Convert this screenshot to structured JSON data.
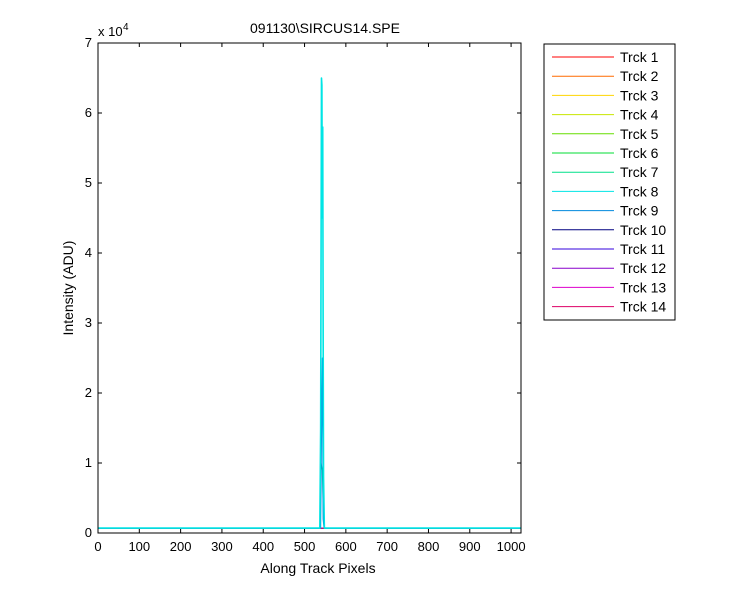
{
  "chart_data": {
    "type": "line",
    "title": "091130\\SIRCUS14.SPE",
    "xlabel": "Along Track Pixels",
    "ylabel": "Intensity (ADU)",
    "xlim": [
      0,
      1024
    ],
    "ylim": [
      0,
      70000
    ],
    "y_exponent_label": "x 10",
    "y_exponent_power": "4",
    "grid": false,
    "legend_placement": "outside-top-right",
    "xticks": [
      {
        "value": 0,
        "label": "0"
      },
      {
        "value": 100,
        "label": "100"
      },
      {
        "value": 200,
        "label": "200"
      },
      {
        "value": 300,
        "label": "300"
      },
      {
        "value": 400,
        "label": "400"
      },
      {
        "value": 500,
        "label": "500"
      },
      {
        "value": 600,
        "label": "600"
      },
      {
        "value": 700,
        "label": "700"
      },
      {
        "value": 800,
        "label": "800"
      },
      {
        "value": 900,
        "label": "900"
      },
      {
        "value": 1000,
        "label": "1000"
      }
    ],
    "yticks": [
      {
        "value": 0,
        "label": "0"
      },
      {
        "value": 10000,
        "label": "1"
      },
      {
        "value": 20000,
        "label": "2"
      },
      {
        "value": 30000,
        "label": "3"
      },
      {
        "value": 40000,
        "label": "4"
      },
      {
        "value": 50000,
        "label": "5"
      },
      {
        "value": 60000,
        "label": "6"
      },
      {
        "value": 70000,
        "label": "7"
      }
    ],
    "series": [
      {
        "name": "Trck 1",
        "color": "#ff0000",
        "x": [
          0,
          1024
        ],
        "y": [
          700,
          700
        ]
      },
      {
        "name": "Trck 2",
        "color": "#ff6a00",
        "x": [
          0,
          1024
        ],
        "y": [
          700,
          700
        ]
      },
      {
        "name": "Trck 3",
        "color": "#ffd400",
        "x": [
          0,
          1024
        ],
        "y": [
          700,
          700
        ]
      },
      {
        "name": "Trck 4",
        "color": "#c8e600",
        "x": [
          0,
          1024
        ],
        "y": [
          700,
          700
        ]
      },
      {
        "name": "Trck 5",
        "color": "#66dd00",
        "x": [
          0,
          1024
        ],
        "y": [
          700,
          700
        ]
      },
      {
        "name": "Trck 6",
        "color": "#00dd33",
        "x": [
          0,
          1024
        ],
        "y": [
          700,
          700
        ]
      },
      {
        "name": "Trck 7",
        "color": "#00e08a",
        "x": [
          0,
          537,
          540,
          543,
          546,
          549,
          1024
        ],
        "y": [
          700,
          700,
          10000,
          9000,
          1500,
          700,
          700
        ]
      },
      {
        "name": "Trck 8",
        "color": "#00e5e5",
        "x": [
          0,
          537,
          539,
          541,
          542,
          543,
          544,
          545,
          546,
          548,
          1024
        ],
        "y": [
          700,
          700,
          15000,
          65000,
          64000,
          45000,
          58000,
          30000,
          8000,
          700,
          700
        ]
      },
      {
        "name": "Trck 9",
        "color": "#0088dd",
        "x": [
          0,
          539,
          541,
          543,
          545,
          547,
          1024
        ],
        "y": [
          700,
          700,
          13000,
          25000,
          2000,
          700,
          700
        ]
      },
      {
        "name": "Trck 10",
        "color": "#000080",
        "x": [
          0,
          1024
        ],
        "y": [
          700,
          700
        ]
      },
      {
        "name": "Trck 11",
        "color": "#3300dd",
        "x": [
          0,
          1024
        ],
        "y": [
          700,
          700
        ]
      },
      {
        "name": "Trck 12",
        "color": "#8800cc",
        "x": [
          0,
          1024
        ],
        "y": [
          700,
          700
        ]
      },
      {
        "name": "Trck 13",
        "color": "#dd00cc",
        "x": [
          0,
          1024
        ],
        "y": [
          700,
          700
        ]
      },
      {
        "name": "Trck 14",
        "color": "#dd0066",
        "x": [
          0,
          1024
        ],
        "y": [
          700,
          700
        ]
      }
    ]
  }
}
